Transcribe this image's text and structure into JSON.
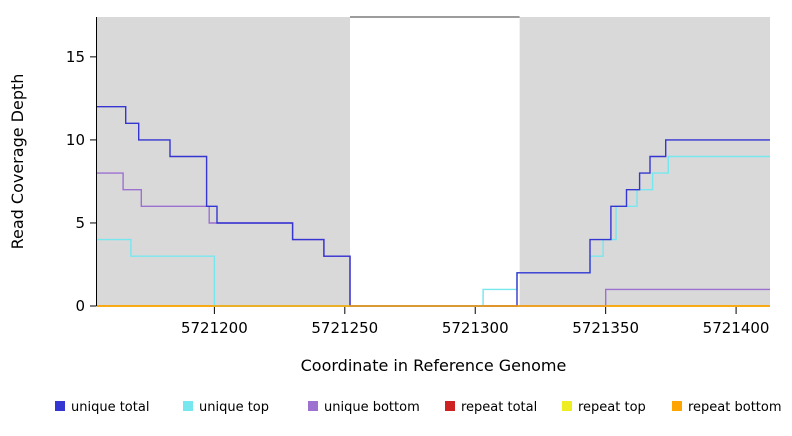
{
  "chart_data": {
    "type": "line",
    "step": "post",
    "title": "",
    "xlabel": "Coordinate in Reference Genome",
    "ylabel": "Read Coverage Depth",
    "xlim": [
      5721155,
      5721413
    ],
    "ylim": [
      0,
      17.4
    ],
    "xticks": [
      5721200,
      5721250,
      5721300,
      5721350,
      5721400
    ],
    "yticks": [
      0,
      5,
      10,
      15
    ],
    "grid": false,
    "legend_position": "bottom",
    "shaded_regions": [
      {
        "x1": 5721155,
        "x2": 5721252,
        "color": "#d9d9d9"
      },
      {
        "x1": 5721317,
        "x2": 5721413,
        "color": "#d9d9d9"
      }
    ],
    "gap_region": {
      "x1": 5721252,
      "x2": 5721317,
      "color": "#ffffff",
      "top_border_color": "#606060"
    },
    "series": [
      {
        "name": "unique total",
        "color": "#3535d1",
        "points": [
          [
            5721155,
            12
          ],
          [
            5721166,
            11
          ],
          [
            5721171,
            10
          ],
          [
            5721183,
            9
          ],
          [
            5721197,
            6
          ],
          [
            5721201,
            5
          ],
          [
            5721230,
            4
          ],
          [
            5721242,
            3
          ],
          [
            5721252,
            0
          ],
          [
            5721316,
            2
          ],
          [
            5721344,
            4
          ],
          [
            5721352,
            6
          ],
          [
            5721358,
            7
          ],
          [
            5721363,
            8
          ],
          [
            5721367,
            9
          ],
          [
            5721373,
            10
          ]
        ]
      },
      {
        "name": "unique top",
        "color": "#76e7ee",
        "points": [
          [
            5721155,
            4
          ],
          [
            5721168,
            3
          ],
          [
            5721200,
            0
          ],
          [
            5721303,
            1
          ],
          [
            5721316,
            2
          ],
          [
            5721344,
            3
          ],
          [
            5721349,
            4
          ],
          [
            5721354,
            6
          ],
          [
            5721362,
            7
          ],
          [
            5721368,
            8
          ],
          [
            5721374,
            9
          ]
        ]
      },
      {
        "name": "unique bottom",
        "color": "#9d71d0",
        "points": [
          [
            5721155,
            8
          ],
          [
            5721165,
            7
          ],
          [
            5721172,
            6
          ],
          [
            5721198,
            5
          ],
          [
            5721230,
            4
          ],
          [
            5721242,
            3
          ],
          [
            5721252,
            0
          ],
          [
            5721350,
            1
          ]
        ]
      },
      {
        "name": "repeat total",
        "color": "#cc2222",
        "points": [
          [
            5721155,
            0
          ]
        ]
      },
      {
        "name": "repeat top",
        "color": "#eded22",
        "points": [
          [
            5721155,
            0
          ]
        ]
      },
      {
        "name": "repeat bottom",
        "color": "#ffa500",
        "points": [
          [
            5721155,
            0
          ]
        ]
      }
    ],
    "draw_order": [
      3,
      4,
      2,
      1,
      0,
      5
    ]
  }
}
